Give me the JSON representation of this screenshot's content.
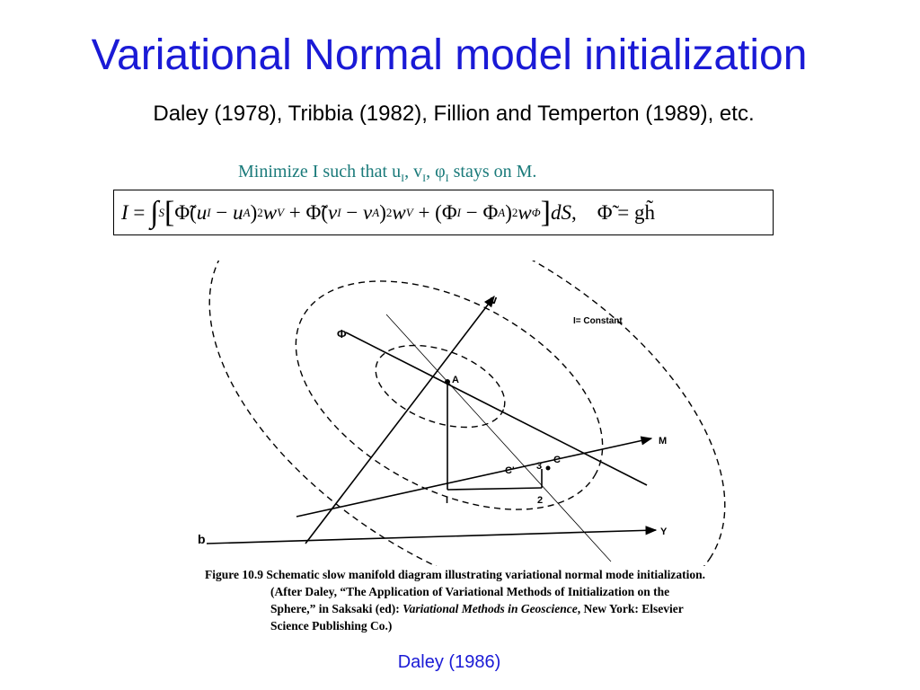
{
  "slide": {
    "title": "Variational Normal model initialization",
    "subtitle": "Daley (1978), Tribbia (1982), Fillion and Temperton (1989), etc.",
    "source": "Daley (1986)"
  },
  "constraint": {
    "text_prefix": "Minimize I such that u",
    "sub1": "I",
    "sep1": ", v",
    "sub2": "I",
    "sep2": ", ",
    "phi": "φ",
    "sub3": "I",
    "text_suffix": " stays on M."
  },
  "equation": {
    "lhs": "I",
    "eq": "=",
    "integral": "∫",
    "integral_sub": "S",
    "body": "[Φ̃(u_I − u_A)² w_V + Φ̃(v_I − v_A)² w_V + (Φ_I − Φ_A)² w_Φ] dS,",
    "relation": "Φ̃ = gh̃"
  },
  "figure": {
    "axis_v": "v",
    "axis_phi": "Φ",
    "axis_m": "M",
    "axis_y": "Y",
    "contour_label": "I= Constant",
    "point_a": "A",
    "point_c": "C",
    "point_c_prime": "C'",
    "point_i": "I",
    "point_2": "2",
    "point_3": "3",
    "panel_label": "b"
  },
  "caption": {
    "line1": "Figure 10.9 Schematic slow manifold diagram illustrating variational normal mode initialization.",
    "line2": "(After Daley, “The Application of Variational Methods of Initialization on the",
    "line3_a": "Sphere,” in Saksaki (ed): ",
    "line3_em": "Variational Methods in Geoscience",
    "line3_b": ", New York: Elsevier",
    "line4": "Science Publishing Co.)"
  }
}
